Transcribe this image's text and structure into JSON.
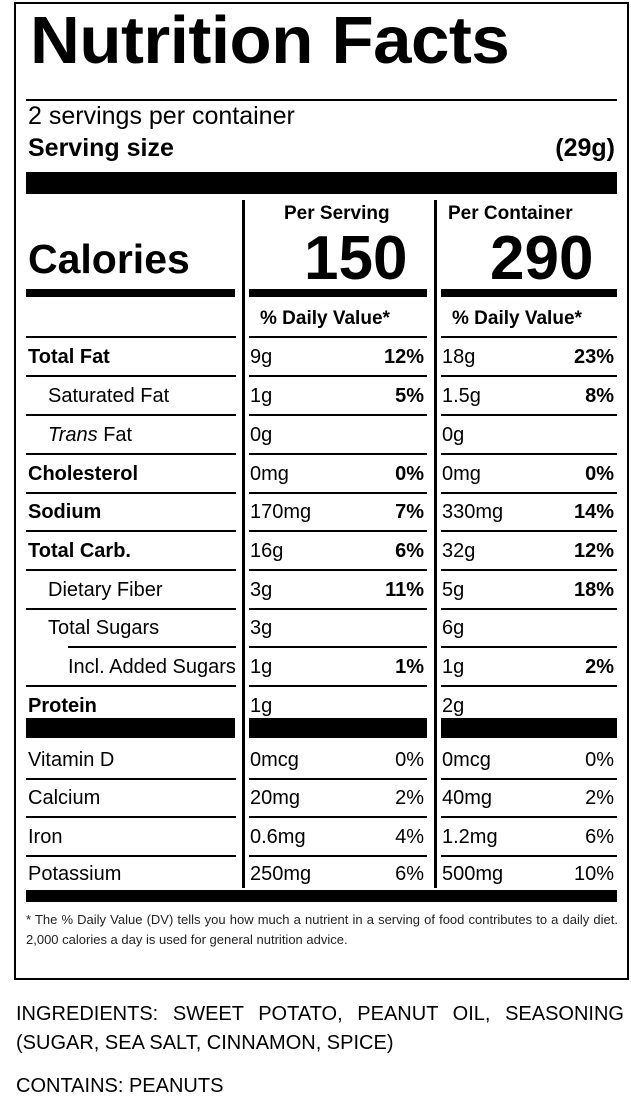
{
  "title": "Nutrition Facts",
  "servings_per_container": "2 servings per container",
  "serving_size_label": "Serving size",
  "serving_size_value": "(29g)",
  "calories_label": "Calories",
  "per_serving_label": "Per Serving",
  "per_container_label": "Per Container",
  "calories_per_serving": "150",
  "calories_per_container": "290",
  "dv_header": "% Daily Value*",
  "nutrients": [
    {
      "label": "Total Fat",
      "s_amt": "9g",
      "s_pct": "12%",
      "c_amt": "18g",
      "c_pct": "23%"
    },
    {
      "label": "Saturated Fat",
      "s_amt": "1g",
      "s_pct": "5%",
      "c_amt": "1.5g",
      "c_pct": "8%"
    },
    {
      "label_italic": "Trans",
      "label_rest": " Fat",
      "s_amt": "0g",
      "s_pct": "",
      "c_amt": "0g",
      "c_pct": ""
    },
    {
      "label": "Cholesterol",
      "s_amt": "0mg",
      "s_pct": "0%",
      "c_amt": "0mg",
      "c_pct": "0%"
    },
    {
      "label": "Sodium",
      "s_amt": "170mg",
      "s_pct": "7%",
      "c_amt": "330mg",
      "c_pct": "14%"
    },
    {
      "label": "Total Carb.",
      "s_amt": "16g",
      "s_pct": "6%",
      "c_amt": "32g",
      "c_pct": "12%"
    },
    {
      "label": "Dietary Fiber",
      "s_amt": "3g",
      "s_pct": "11%",
      "c_amt": "5g",
      "c_pct": "18%"
    },
    {
      "label": "Total Sugars",
      "s_amt": "3g",
      "s_pct": "",
      "c_amt": "6g",
      "c_pct": ""
    },
    {
      "label": "Incl. Added Sugars",
      "s_amt": "1g",
      "s_pct": "1%",
      "c_amt": "1g",
      "c_pct": "2%"
    },
    {
      "label": "Protein",
      "s_amt": "1g",
      "s_pct": "",
      "c_amt": "2g",
      "c_pct": ""
    }
  ],
  "vitamins": [
    {
      "label": "Vitamin D",
      "s_amt": "0mcg",
      "s_pct": "0%",
      "c_amt": "0mcg",
      "c_pct": "0%"
    },
    {
      "label": "Calcium",
      "s_amt": "20mg",
      "s_pct": "2%",
      "c_amt": "40mg",
      "c_pct": "2%"
    },
    {
      "label": "Iron",
      "s_amt": "0.6mg",
      "s_pct": "4%",
      "c_amt": "1.2mg",
      "c_pct": "6%"
    },
    {
      "label": "Potassium",
      "s_amt": "250mg",
      "s_pct": "6%",
      "c_amt": "500mg",
      "c_pct": "10%"
    }
  ],
  "footnote_mark": "*",
  "footnote": "The % Daily Value (DV) tells you how much a nutrient in a serving of food contributes to a daily diet. 2,000 calories a day is used for general nutrition advice.",
  "ingredients": "INGREDIENTS: SWEET POTATO, PEANUT OIL, SEASONING (SUGAR, SEA SALT, CINNAMON, SPICE)",
  "contains": "CONTAINS: PEANUTS"
}
